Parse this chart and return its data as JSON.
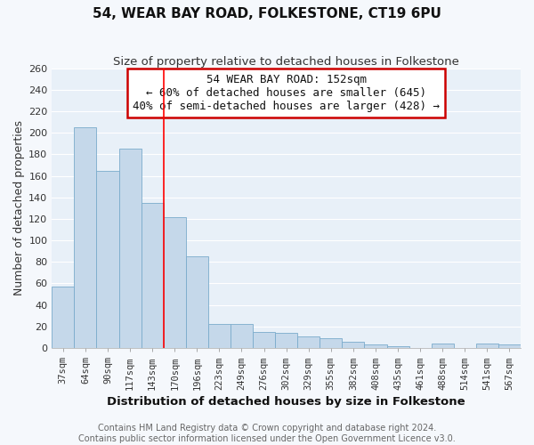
{
  "title": "54, WEAR BAY ROAD, FOLKESTONE, CT19 6PU",
  "subtitle": "Size of property relative to detached houses in Folkestone",
  "xlabel": "Distribution of detached houses by size in Folkestone",
  "ylabel": "Number of detached properties",
  "categories": [
    "37sqm",
    "64sqm",
    "90sqm",
    "117sqm",
    "143sqm",
    "170sqm",
    "196sqm",
    "223sqm",
    "249sqm",
    "276sqm",
    "302sqm",
    "329sqm",
    "355sqm",
    "382sqm",
    "408sqm",
    "435sqm",
    "461sqm",
    "488sqm",
    "514sqm",
    "541sqm",
    "567sqm"
  ],
  "values": [
    57,
    205,
    165,
    185,
    135,
    122,
    85,
    22,
    22,
    15,
    14,
    11,
    9,
    6,
    3,
    2,
    0,
    4,
    0,
    4,
    3
  ],
  "bar_color": "#c5d8ea",
  "bar_edge_color": "#7aabcc",
  "red_line_x": 4,
  "annotation_title": "54 WEAR BAY ROAD: 152sqm",
  "annotation_line1": "← 60% of detached houses are smaller (645)",
  "annotation_line2": "40% of semi-detached houses are larger (428) →",
  "annotation_box_color": "#ffffff",
  "annotation_box_edge_color": "#cc0000",
  "ylim": [
    0,
    260
  ],
  "yticks": [
    0,
    20,
    40,
    60,
    80,
    100,
    120,
    140,
    160,
    180,
    200,
    220,
    240,
    260
  ],
  "footer_line1": "Contains HM Land Registry data © Crown copyright and database right 2024.",
  "footer_line2": "Contains public sector information licensed under the Open Government Licence v3.0.",
  "plot_bg_color": "#e8f0f8",
  "fig_bg_color": "#f5f8fc",
  "grid_color": "#ffffff",
  "title_fontsize": 11,
  "subtitle_fontsize": 9.5,
  "axis_label_fontsize": 9,
  "tick_fontsize": 7.5,
  "annotation_fontsize": 9,
  "footer_fontsize": 7
}
